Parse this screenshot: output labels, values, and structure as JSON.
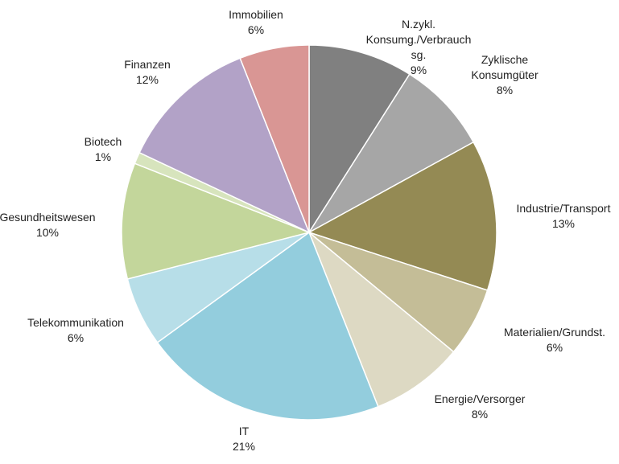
{
  "chart_data": {
    "type": "pie",
    "title": "",
    "unit": "%",
    "slices": [
      {
        "label_lines": [
          "N.zykl.",
          "Konsumg./Verbrauch",
          "sg."
        ],
        "value_label": "9%",
        "value": 9,
        "color": "#808080"
      },
      {
        "label_lines": [
          "Zyklische",
          "Konsumgüter"
        ],
        "value_label": "8%",
        "value": 8,
        "color": "#a6a6a6"
      },
      {
        "label_lines": [
          "Industrie/Transport"
        ],
        "value_label": "13%",
        "value": 13,
        "color": "#948a54"
      },
      {
        "label_lines": [
          "Materialien/Grundst."
        ],
        "value_label": "6%",
        "value": 6,
        "color": "#c4bd97"
      },
      {
        "label_lines": [
          "Energie/Versorger"
        ],
        "value_label": "8%",
        "value": 8,
        "color": "#ddd9c3"
      },
      {
        "label_lines": [
          "IT"
        ],
        "value_label": "21%",
        "value": 21,
        "color": "#93cddd"
      },
      {
        "label_lines": [
          "Telekommunikation"
        ],
        "value_label": "6%",
        "value": 6,
        "color": "#b7dee8"
      },
      {
        "label_lines": [
          "Gesundheitswesen"
        ],
        "value_label": "10%",
        "value": 10,
        "color": "#c3d69b"
      },
      {
        "label_lines": [
          "Biotech"
        ],
        "value_label": "1%",
        "value": 1,
        "color": "#d7e4bd"
      },
      {
        "label_lines": [
          "Finanzen"
        ],
        "value_label": "12%",
        "value": 12,
        "color": "#b2a2c7"
      },
      {
        "label_lines": [
          "Immobilien"
        ],
        "value_label": "6%",
        "value": 6,
        "color": "#d99694"
      }
    ],
    "start_angle": "12 o'clock",
    "direction": "clockwise",
    "legend": "none"
  }
}
